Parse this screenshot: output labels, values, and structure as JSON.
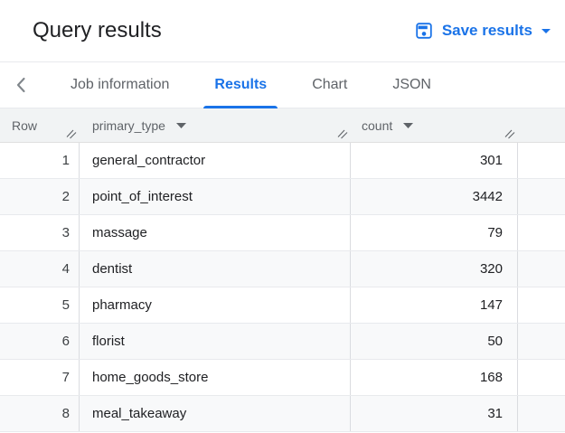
{
  "header": {
    "title": "Query results",
    "save_button_label": "Save results"
  },
  "tabs": {
    "items": [
      {
        "label": "Job information",
        "active": false
      },
      {
        "label": "Results",
        "active": true
      },
      {
        "label": "Chart",
        "active": false
      },
      {
        "label": "JSON",
        "active": false
      }
    ]
  },
  "table": {
    "columns": [
      {
        "label": "Row",
        "has_menu": false
      },
      {
        "label": "primary_type",
        "has_menu": true
      },
      {
        "label": "count",
        "has_menu": true
      }
    ],
    "rows": [
      {
        "row": "1",
        "primary_type": "general_contractor",
        "count": "301"
      },
      {
        "row": "2",
        "primary_type": "point_of_interest",
        "count": "3442"
      },
      {
        "row": "3",
        "primary_type": "massage",
        "count": "79"
      },
      {
        "row": "4",
        "primary_type": "dentist",
        "count": "320"
      },
      {
        "row": "5",
        "primary_type": "pharmacy",
        "count": "147"
      },
      {
        "row": "6",
        "primary_type": "florist",
        "count": "50"
      },
      {
        "row": "7",
        "primary_type": "home_goods_store",
        "count": "168"
      },
      {
        "row": "8",
        "primary_type": "meal_takeaway",
        "count": "31"
      }
    ]
  },
  "icons": {
    "save": "save-icon",
    "save_caret": "caret-down-icon",
    "back": "chevron-left-icon",
    "column_menu": "caret-down-icon",
    "resize": "column-resize-handle-icon"
  },
  "colors": {
    "accent": "#1a73e8",
    "title_text": "#202124",
    "inactive_tab_text": "#5f6368",
    "header_row_bg": "#f1f3f4",
    "alt_row_bg": "#f8f9fa",
    "column_border": "#dadce0",
    "row_border": "#e8eaed",
    "cell_text": "#202124"
  }
}
